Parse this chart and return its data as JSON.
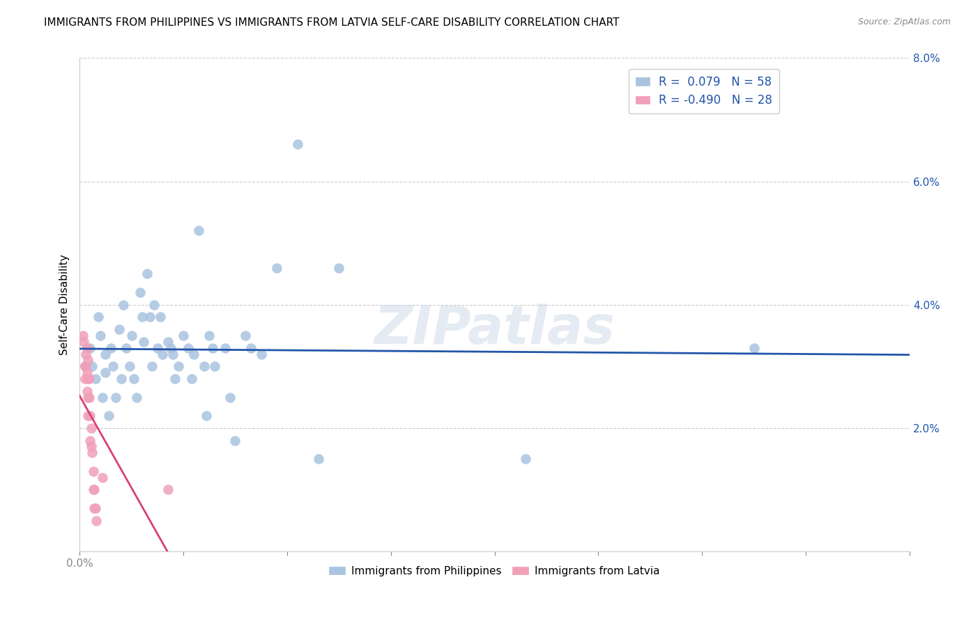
{
  "title": "IMMIGRANTS FROM PHILIPPINES VS IMMIGRANTS FROM LATVIA SELF-CARE DISABILITY CORRELATION CHART",
  "source": "Source: ZipAtlas.com",
  "ylabel": "Self-Care Disability",
  "xlim": [
    0,
    0.8
  ],
  "ylim": [
    0,
    0.08
  ],
  "xticks": [
    0.0,
    0.1,
    0.2,
    0.3,
    0.4,
    0.5,
    0.6,
    0.7,
    0.8
  ],
  "xtick_labels_shown": {
    "0.0": "0.0%"
  },
  "yticks": [
    0.0,
    0.02,
    0.04,
    0.06,
    0.08
  ],
  "ytick_labels": [
    "",
    "2.0%",
    "4.0%",
    "6.0%",
    "8.0%"
  ],
  "blue_R": 0.079,
  "blue_N": 58,
  "pink_R": -0.49,
  "pink_N": 28,
  "blue_color": "#aac4e0",
  "blue_line_color": "#2255aa",
  "pink_color": "#f0a0b8",
  "pink_line_color": "#d94070",
  "watermark": "ZIPatlas",
  "blue_scatter_x": [
    0.005,
    0.01,
    0.012,
    0.015,
    0.018,
    0.02,
    0.022,
    0.025,
    0.025,
    0.028,
    0.03,
    0.032,
    0.035,
    0.038,
    0.04,
    0.042,
    0.045,
    0.048,
    0.05,
    0.052,
    0.055,
    0.058,
    0.06,
    0.062,
    0.065,
    0.068,
    0.07,
    0.072,
    0.075,
    0.078,
    0.08,
    0.085,
    0.088,
    0.09,
    0.092,
    0.095,
    0.1,
    0.105,
    0.108,
    0.11,
    0.115,
    0.12,
    0.122,
    0.125,
    0.128,
    0.13,
    0.14,
    0.145,
    0.15,
    0.16,
    0.165,
    0.175,
    0.19,
    0.21,
    0.23,
    0.25,
    0.43,
    0.65
  ],
  "blue_scatter_y": [
    0.03,
    0.033,
    0.03,
    0.028,
    0.038,
    0.035,
    0.025,
    0.032,
    0.029,
    0.022,
    0.033,
    0.03,
    0.025,
    0.036,
    0.028,
    0.04,
    0.033,
    0.03,
    0.035,
    0.028,
    0.025,
    0.042,
    0.038,
    0.034,
    0.045,
    0.038,
    0.03,
    0.04,
    0.033,
    0.038,
    0.032,
    0.034,
    0.033,
    0.032,
    0.028,
    0.03,
    0.035,
    0.033,
    0.028,
    0.032,
    0.052,
    0.03,
    0.022,
    0.035,
    0.033,
    0.03,
    0.033,
    0.025,
    0.018,
    0.035,
    0.033,
    0.032,
    0.046,
    0.066,
    0.015,
    0.046,
    0.015,
    0.033
  ],
  "pink_scatter_x": [
    0.003,
    0.004,
    0.005,
    0.005,
    0.006,
    0.006,
    0.007,
    0.007,
    0.007,
    0.008,
    0.008,
    0.008,
    0.008,
    0.009,
    0.009,
    0.01,
    0.01,
    0.011,
    0.011,
    0.012,
    0.013,
    0.013,
    0.014,
    0.014,
    0.015,
    0.016,
    0.022,
    0.085
  ],
  "pink_scatter_y": [
    0.035,
    0.034,
    0.03,
    0.028,
    0.032,
    0.03,
    0.033,
    0.029,
    0.026,
    0.031,
    0.028,
    0.025,
    0.022,
    0.028,
    0.025,
    0.022,
    0.018,
    0.02,
    0.017,
    0.016,
    0.013,
    0.01,
    0.01,
    0.007,
    0.007,
    0.005,
    0.012,
    0.01
  ],
  "pink_line_x_end": 0.195,
  "legend_label_blue": "Immigrants from Philippines",
  "legend_label_pink": "Immigrants from Latvia"
}
